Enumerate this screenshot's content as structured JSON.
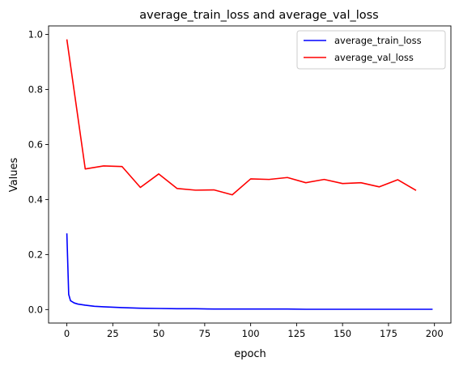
{
  "chart_data": {
    "type": "line",
    "title": "average_train_loss and average_val_loss",
    "xlabel": "epoch",
    "ylabel": "Values",
    "xlim": [
      -9.95,
      208.95
    ],
    "ylim": [
      -0.049,
      1.031
    ],
    "xticks": [
      0,
      25,
      50,
      75,
      100,
      125,
      150,
      175,
      200
    ],
    "yticks": [
      0.0,
      0.2,
      0.4,
      0.6,
      0.8,
      1.0
    ],
    "xtick_labels": [
      "0",
      "25",
      "50",
      "75",
      "100",
      "125",
      "150",
      "175",
      "200"
    ],
    "ytick_labels": [
      "0.0",
      "0.2",
      "0.4",
      "0.6",
      "0.8",
      "1.0"
    ],
    "grid": false,
    "legend_position": "top-right",
    "series": [
      {
        "name": "average_train_loss",
        "color": "#0000ff",
        "x": [
          0,
          1,
          2,
          4,
          6,
          10,
          15,
          20,
          30,
          40,
          50,
          60,
          70,
          80,
          90,
          100,
          110,
          120,
          130,
          140,
          150,
          160,
          170,
          180,
          190,
          199
        ],
        "y": [
          0.277,
          0.055,
          0.032,
          0.024,
          0.02,
          0.016,
          0.012,
          0.01,
          0.007,
          0.005,
          0.004,
          0.003,
          0.003,
          0.002,
          0.002,
          0.002,
          0.002,
          0.002,
          0.001,
          0.001,
          0.001,
          0.001,
          0.001,
          0.001,
          0.001,
          0.001
        ]
      },
      {
        "name": "average_val_loss",
        "color": "#ff0000",
        "x": [
          0,
          10,
          20,
          30,
          40,
          50,
          60,
          70,
          80,
          90,
          100,
          110,
          120,
          130,
          140,
          150,
          160,
          170,
          180,
          190
        ],
        "y": [
          0.982,
          0.511,
          0.522,
          0.52,
          0.444,
          0.493,
          0.44,
          0.434,
          0.435,
          0.417,
          0.475,
          0.473,
          0.48,
          0.461,
          0.473,
          0.458,
          0.461,
          0.446,
          0.472,
          0.433
        ]
      }
    ]
  }
}
